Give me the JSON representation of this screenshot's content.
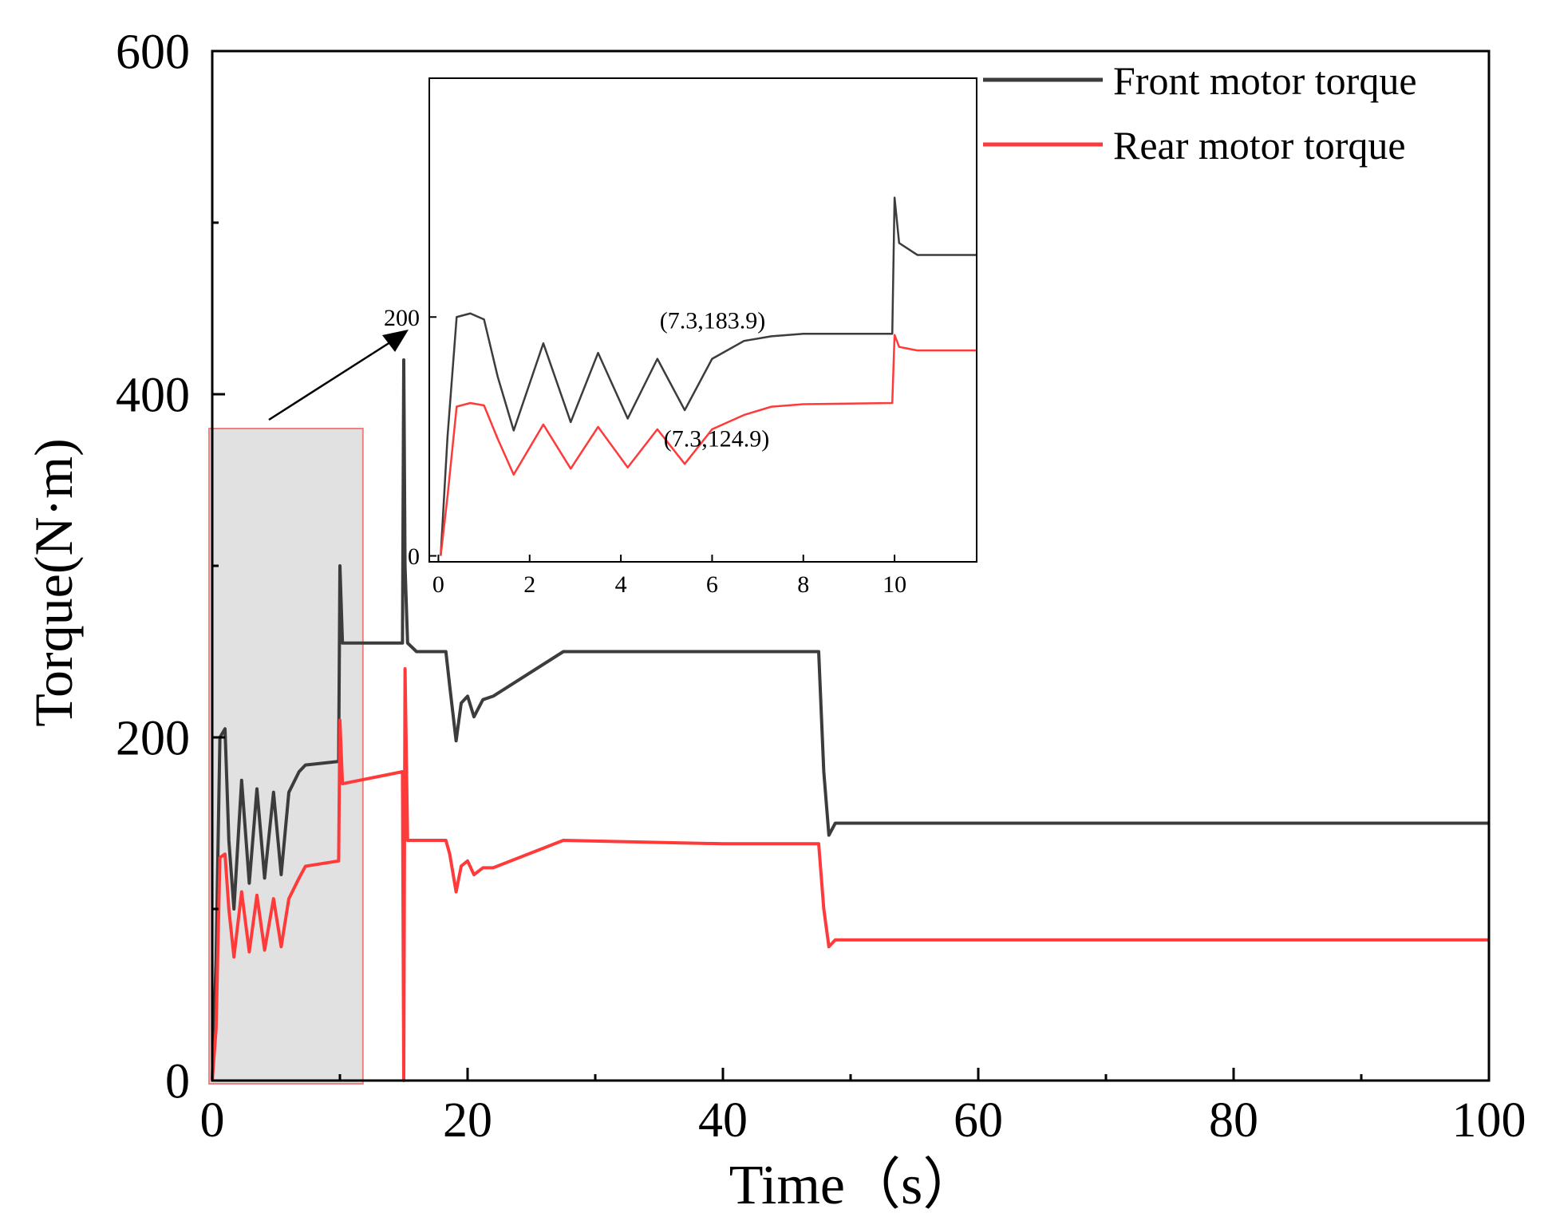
{
  "chart_data": [
    {
      "id": "main",
      "type": "line",
      "xlabel": "Time（s）",
      "ylabel": "Torque(N·m)",
      "xlim": [
        0,
        100
      ],
      "ylim": [
        0,
        600
      ],
      "x_ticks": [
        "0",
        "20",
        "40",
        "60",
        "80",
        "100"
      ],
      "x_tick_values": [
        0,
        20,
        40,
        60,
        80,
        100
      ],
      "y_ticks": [
        "0",
        "200",
        "400",
        "600"
      ],
      "y_tick_values": [
        0,
        200,
        400,
        600
      ],
      "legend": {
        "position": "top-right",
        "entries": [
          "Front motor torque",
          "Rear motor torque"
        ]
      },
      "highlight_region": {
        "x_range": [
          0,
          11.8
        ],
        "y_range": [
          0,
          380
        ]
      },
      "series": [
        {
          "name": "Front motor torque",
          "color": "#3c3c3c",
          "points": [
            [
              0,
              0
            ],
            [
              0.3,
              70
            ],
            [
              0.6,
              200
            ],
            [
              1.0,
              205
            ],
            [
              1.3,
              140
            ],
            [
              1.7,
              100
            ],
            [
              2.3,
              175
            ],
            [
              2.9,
              115
            ],
            [
              3.5,
              170
            ],
            [
              4.1,
              118
            ],
            [
              4.8,
              168
            ],
            [
              5.4,
              120
            ],
            [
              6.0,
              168
            ],
            [
              6.8,
              180
            ],
            [
              7.3,
              183.9
            ],
            [
              9.9,
              186
            ],
            [
              10.0,
              300
            ],
            [
              10.2,
              255
            ],
            [
              14.9,
              255
            ],
            [
              15.0,
              420
            ],
            [
              15.1,
              300
            ],
            [
              15.3,
              255
            ],
            [
              16.0,
              250
            ],
            [
              18.3,
              250
            ],
            [
              18.6,
              230
            ],
            [
              19.1,
              198
            ],
            [
              19.5,
              220
            ],
            [
              20.0,
              224
            ],
            [
              20.5,
              212
            ],
            [
              21.2,
              222
            ],
            [
              22.0,
              224
            ],
            [
              27.5,
              250
            ],
            [
              40.0,
              250
            ],
            [
              47.5,
              250
            ],
            [
              47.9,
              180
            ],
            [
              48.3,
              143
            ],
            [
              48.8,
              150
            ],
            [
              100,
              150
            ]
          ]
        },
        {
          "name": "Rear motor torque",
          "color": "#ff3a3a",
          "points": [
            [
              0,
              0
            ],
            [
              0.3,
              30
            ],
            [
              0.6,
              130
            ],
            [
              1.0,
              132
            ],
            [
              1.3,
              100
            ],
            [
              1.7,
              72
            ],
            [
              2.3,
              110
            ],
            [
              2.9,
              75
            ],
            [
              3.5,
              108
            ],
            [
              4.1,
              76
            ],
            [
              4.8,
              106
            ],
            [
              5.4,
              78
            ],
            [
              6.0,
              106
            ],
            [
              6.8,
              118
            ],
            [
              7.3,
              124.9
            ],
            [
              9.9,
              128
            ],
            [
              10.0,
              210
            ],
            [
              10.2,
              173
            ],
            [
              14.9,
              180
            ],
            [
              15.0,
              0
            ],
            [
              15.1,
              240
            ],
            [
              15.3,
              140
            ],
            [
              18.3,
              140
            ],
            [
              18.6,
              132
            ],
            [
              19.1,
              110
            ],
            [
              19.5,
              125
            ],
            [
              20.0,
              128
            ],
            [
              20.5,
              120
            ],
            [
              21.2,
              124
            ],
            [
              22.0,
              124
            ],
            [
              27.5,
              140
            ],
            [
              40.0,
              138
            ],
            [
              47.5,
              138
            ],
            [
              47.9,
              100
            ],
            [
              48.3,
              78
            ],
            [
              48.8,
              82
            ],
            [
              100,
              82
            ]
          ]
        }
      ]
    },
    {
      "id": "inset",
      "type": "line",
      "xlim": [
        -0.2,
        11.8
      ],
      "ylim": [
        -5,
        400
      ],
      "x_ticks": [
        "0",
        "2",
        "4",
        "6",
        "8",
        "10"
      ],
      "x_tick_values": [
        0,
        2,
        4,
        6,
        8,
        10
      ],
      "y_ticks": [
        "0",
        "200"
      ],
      "y_tick_values": [
        0,
        200
      ],
      "annotations": [
        {
          "text": "(7.3,183.9)",
          "x": 7.3,
          "y": 183.9
        },
        {
          "text": "(7.3,124.9)",
          "x": 7.3,
          "y": 124.9
        }
      ],
      "series": [
        {
          "name": "Front motor torque",
          "color": "#3c3c3c",
          "points": [
            [
              0.05,
              0
            ],
            [
              0.2,
              100
            ],
            [
              0.4,
              200
            ],
            [
              0.7,
              203
            ],
            [
              1.0,
              198
            ],
            [
              1.3,
              150
            ],
            [
              1.65,
              105
            ],
            [
              2.3,
              178
            ],
            [
              2.9,
              112
            ],
            [
              3.5,
              170
            ],
            [
              4.15,
              115
            ],
            [
              4.8,
              165
            ],
            [
              5.4,
              122
            ],
            [
              6.0,
              165
            ],
            [
              6.7,
              180
            ],
            [
              7.3,
              183.9
            ],
            [
              8.0,
              186
            ],
            [
              9.95,
              186
            ],
            [
              10.0,
              300
            ],
            [
              10.1,
              262
            ],
            [
              10.5,
              252
            ],
            [
              11.8,
              252
            ]
          ]
        },
        {
          "name": "Rear motor torque",
          "color": "#ff3a3a",
          "points": [
            [
              0.05,
              0
            ],
            [
              0.2,
              50
            ],
            [
              0.4,
              125
            ],
            [
              0.7,
              128
            ],
            [
              1.0,
              126
            ],
            [
              1.3,
              98
            ],
            [
              1.65,
              68
            ],
            [
              2.3,
              110
            ],
            [
              2.9,
              73
            ],
            [
              3.5,
              108
            ],
            [
              4.15,
              74
            ],
            [
              4.8,
              106
            ],
            [
              5.4,
              77
            ],
            [
              6.0,
              106
            ],
            [
              6.7,
              118
            ],
            [
              7.3,
              124.9
            ],
            [
              8.0,
              127
            ],
            [
              9.95,
              128
            ],
            [
              10.0,
              185
            ],
            [
              10.1,
              175
            ],
            [
              10.5,
              172
            ],
            [
              11.8,
              172
            ]
          ]
        }
      ]
    }
  ]
}
